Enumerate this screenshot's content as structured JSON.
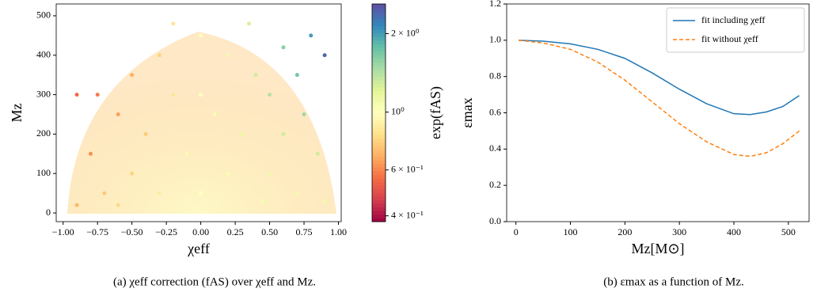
{
  "chart_data": [
    {
      "type": "scatter",
      "caption": "(a) χeff correction (fAS) over χeff and Mz.",
      "xlabel": "χeff",
      "ylabel": "Mz",
      "xlim": [
        -1.05,
        1.02
      ],
      "ylim": [
        -22,
        530
      ],
      "xticks": [
        {
          "value": -1,
          "label": "−1.00"
        },
        {
          "value": -0.75,
          "label": "−0.75"
        },
        {
          "value": -0.5,
          "label": "−0.50"
        },
        {
          "value": -0.25,
          "label": "−0.25"
        },
        {
          "value": 0,
          "label": "0.00"
        },
        {
          "value": 0.25,
          "label": "0.25"
        },
        {
          "value": 0.5,
          "label": "0.50"
        },
        {
          "value": 0.75,
          "label": "0.75"
        },
        {
          "value": 1,
          "label": "1.00"
        }
      ],
      "yticks": [
        0,
        100,
        200,
        300,
        400,
        500
      ],
      "x": [
        -0.9,
        -0.8,
        -0.75,
        -0.7,
        -0.6,
        -0.5,
        -0.5,
        -0.4,
        -0.3,
        -0.3,
        -0.2,
        -0.1,
        0,
        0,
        0.1,
        0.2,
        0.2,
        0.3,
        0.35,
        0.4,
        0.5,
        0.5,
        0.6,
        0.6,
        0.7,
        0.7,
        0.75,
        0.8,
        0.85,
        0.9,
        0.9,
        -0.9,
        -0.6,
        0,
        -0.2,
        0.45
      ],
      "values": [
        20,
        150,
        300,
        50,
        250,
        100,
        350,
        200,
        50,
        400,
        300,
        150,
        450,
        50,
        250,
        400,
        100,
        200,
        480,
        350,
        100,
        300,
        420,
        200,
        350,
        50,
        250,
        450,
        150,
        400,
        30,
        300,
        20,
        300,
        480,
        30
      ],
      "color_values": [
        0.7,
        0.62,
        0.58,
        0.75,
        0.65,
        0.78,
        0.68,
        0.75,
        0.88,
        0.78,
        0.85,
        0.95,
        0.98,
        1.0,
        1.05,
        1.1,
        1.05,
        1.15,
        1.25,
        1.3,
        1.1,
        1.4,
        1.6,
        1.3,
        1.7,
        1.1,
        1.5,
        2.0,
        1.3,
        2.4,
        1.1,
        0.55,
        0.8,
        1.0,
        0.85,
        1.05
      ],
      "colorbar": {
        "label": "exp(fAS)",
        "log": true,
        "lim": [
          0.38,
          2.6
        ],
        "ticks": [
          {
            "value": 0.4,
            "label": "4 × 10⁻¹"
          },
          {
            "value": 0.6,
            "label": "6 × 10⁻¹"
          },
          {
            "value": 1,
            "label": "10⁰"
          },
          {
            "value": 2,
            "label": "2 × 10⁰"
          }
        ],
        "colors": [
          "#9e0142",
          "#d53e4f",
          "#f46d43",
          "#fdae61",
          "#fee08b",
          "#ffffbf",
          "#e6f598",
          "#abdda4",
          "#66c2a5",
          "#3288bd",
          "#5e4fa2"
        ]
      }
    },
    {
      "type": "line",
      "caption": "(b) εmax as a function of Mz.",
      "xlabel": "Mz[M⊙]",
      "ylabel": "εmax",
      "xlim": [
        -17,
        538
      ],
      "ylim": [
        0,
        1.2
      ],
      "xticks": [
        0,
        100,
        200,
        300,
        400,
        500
      ],
      "yticks": [
        {
          "value": 0,
          "label": "0.0"
        },
        0.2,
        0.4,
        0.6,
        0.8,
        {
          "value": 1,
          "label": "1.0"
        },
        0.2,
        {
          "value": 1.2,
          "label": "1.2"
        }
      ],
      "x": [
        5,
        50,
        100,
        150,
        200,
        250,
        300,
        350,
        400,
        430,
        460,
        490,
        520
      ],
      "series": [
        {
          "name": "fit including χeff",
          "color": "#1f77b4",
          "dash": false,
          "values": [
            1.0,
            0.995,
            0.98,
            0.95,
            0.9,
            0.82,
            0.73,
            0.65,
            0.595,
            0.59,
            0.605,
            0.635,
            0.695
          ]
        },
        {
          "name": "fit without χeff",
          "color": "#ff7f0e",
          "dash": true,
          "values": [
            1.0,
            0.985,
            0.95,
            0.88,
            0.78,
            0.66,
            0.54,
            0.44,
            0.37,
            0.36,
            0.38,
            0.43,
            0.5
          ]
        }
      ],
      "legend": "upper right"
    }
  ]
}
